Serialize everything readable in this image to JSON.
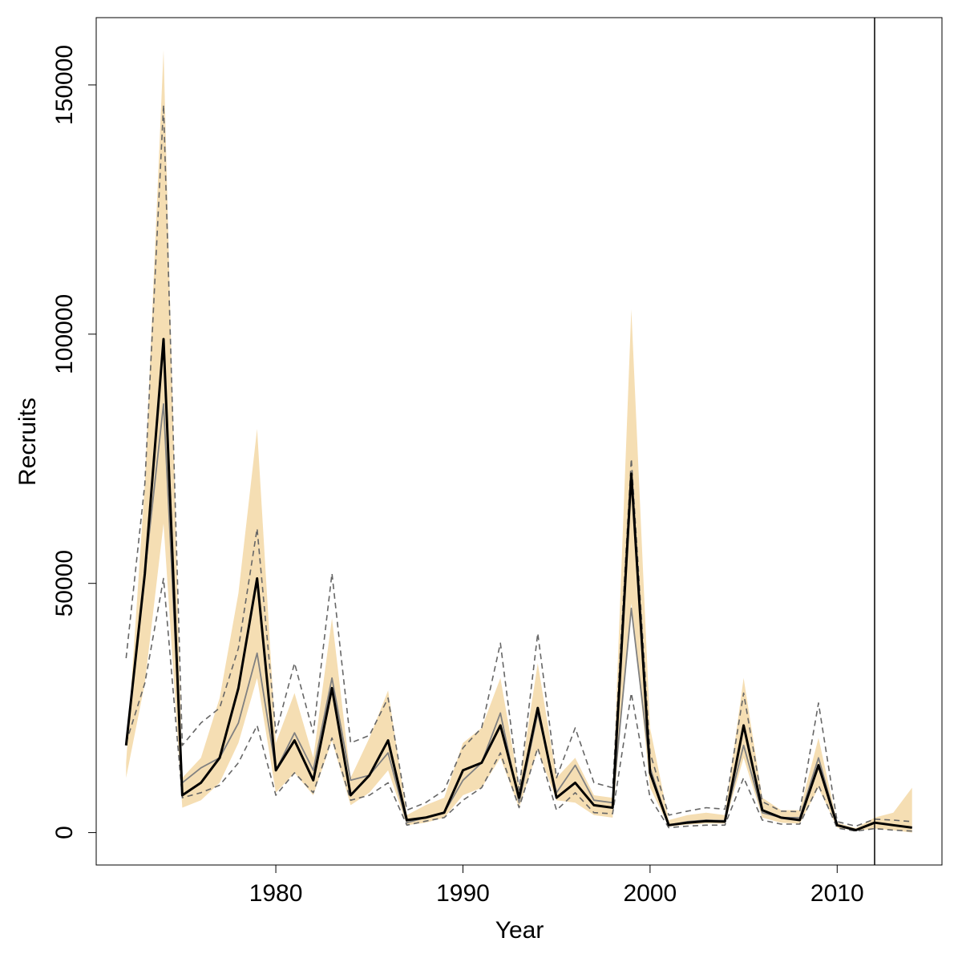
{
  "chart_data": {
    "type": "line",
    "title": "",
    "xlabel": "Year",
    "ylabel": "Recruits",
    "xlim": [
      1970.4,
      2015.6
    ],
    "ylim": [
      -6500,
      163500
    ],
    "x_ticks": [
      1980,
      1990,
      2000,
      2010
    ],
    "y_ticks": [
      0,
      50000,
      100000,
      150000
    ],
    "grid": false,
    "legend": "none",
    "reference_line_x": 2012,
    "colors": {
      "band": "#f5deb3",
      "main": "#000000",
      "alt": "#808080",
      "dashed": "#666666",
      "axis": "#000000"
    },
    "x": [
      1972,
      1973,
      1974,
      1975,
      1976,
      1977,
      1978,
      1979,
      1980,
      1981,
      1982,
      1983,
      1984,
      1985,
      1986,
      1987,
      1988,
      1989,
      1990,
      1991,
      1992,
      1993,
      1994,
      1995,
      1996,
      1997,
      1998,
      1999,
      2000,
      2001,
      2002,
      2003,
      2004,
      2005,
      2006,
      2007,
      2008,
      2009,
      2010,
      2011,
      2012,
      2013,
      2014
    ],
    "series": [
      {
        "role": "band_lower",
        "values": [
          11000,
          30000,
          62000,
          5000,
          6500,
          10000,
          18000,
          31000,
          8000,
          12000,
          7500,
          18500,
          5500,
          8000,
          12500,
          1500,
          2000,
          3000,
          7500,
          9000,
          15000,
          5000,
          16500,
          6500,
          6000,
          3500,
          3000,
          46000,
          9000,
          1200,
          1600,
          1800,
          1800,
          15000,
          3000,
          2000,
          1800,
          9000,
          1000,
          400,
          800,
          500,
          0
        ]
      },
      {
        "role": "band_upper",
        "values": [
          14000,
          70000,
          157000,
          11000,
          15000,
          27000,
          48000,
          81000,
          18000,
          28000,
          15000,
          43000,
          11000,
          19000,
          28500,
          3500,
          5500,
          7000,
          18000,
          21000,
          31000,
          9500,
          34000,
          11000,
          15000,
          7500,
          7000,
          105000,
          21000,
          2500,
          3500,
          4000,
          3500,
          31000,
          7000,
          4500,
          4500,
          19000,
          2000,
          900,
          3000,
          4000,
          9000
        ]
      },
      {
        "role": "main",
        "values": [
          17500,
          52000,
          99000,
          7500,
          10000,
          15000,
          29000,
          51000,
          12500,
          18500,
          10500,
          29000,
          7500,
          11500,
          18500,
          2500,
          3000,
          4000,
          12500,
          14000,
          21500,
          7000,
          25000,
          7000,
          10000,
          5500,
          5000,
          72000,
          12000,
          1500,
          2000,
          2300,
          2200,
          21500,
          4500,
          3000,
          2500,
          13500,
          1500,
          500,
          2000,
          1500,
          1000
        ]
      },
      {
        "role": "alt",
        "values": [
          17500,
          52000,
          86000,
          10000,
          13000,
          15000,
          22000,
          36000,
          12500,
          20000,
          12500,
          31000,
          10500,
          11500,
          16000,
          2000,
          3000,
          4000,
          10500,
          14000,
          24000,
          6000,
          24000,
          8000,
          13500,
          6500,
          6000,
          45000,
          13000,
          1500,
          2200,
          2500,
          2400,
          17500,
          4000,
          3000,
          3000,
          15000,
          1500,
          500,
          2000,
          1500,
          1000
        ]
      },
      {
        "role": "dashed_upper",
        "values": [
          35000,
          70000,
          146000,
          17500,
          22000,
          25000,
          37000,
          61000,
          20000,
          34000,
          20000,
          52000,
          18000,
          19500,
          27000,
          4500,
          6000,
          8500,
          17000,
          21000,
          38000,
          8500,
          40000,
          11000,
          21000,
          10000,
          9000,
          75000,
          16000,
          3500,
          4300,
          5000,
          4700,
          28000,
          6200,
          4300,
          4200,
          26000,
          2200,
          1300,
          2700,
          2500,
          2200
        ]
      },
      {
        "role": "dashed_lower",
        "values": [
          18000,
          30000,
          51000,
          7000,
          8000,
          9500,
          14000,
          21500,
          7500,
          12000,
          8000,
          19000,
          6500,
          7500,
          10000,
          1500,
          2300,
          3000,
          6500,
          9000,
          16000,
          5000,
          17000,
          4500,
          8000,
          4000,
          3800,
          28000,
          7000,
          1000,
          1300,
          1500,
          1500,
          11000,
          2500,
          1700,
          1700,
          9500,
          900,
          300,
          800,
          500,
          300
        ]
      }
    ]
  }
}
